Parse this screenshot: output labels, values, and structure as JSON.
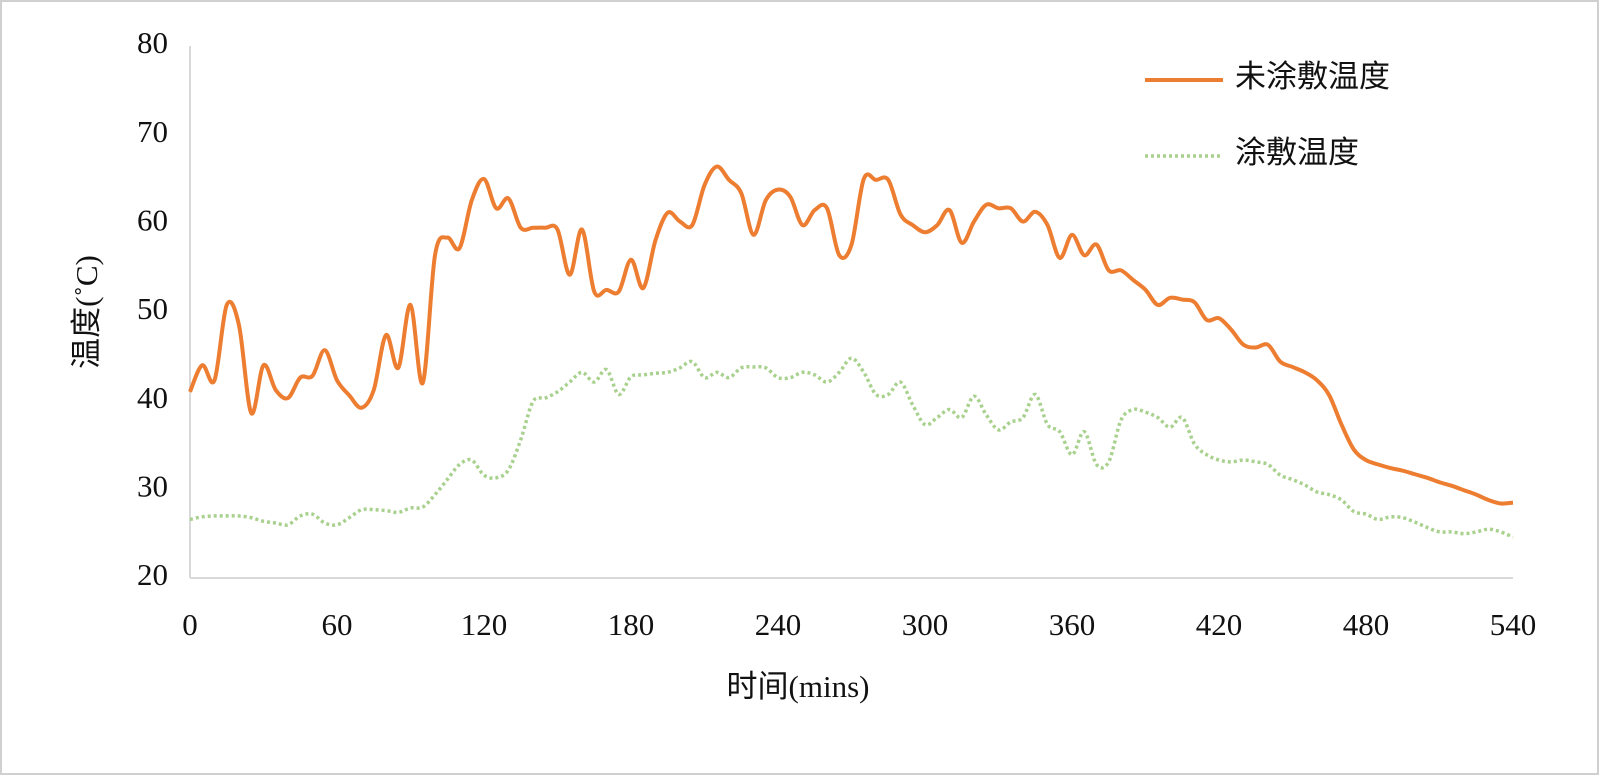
{
  "chart_data": {
    "type": "line",
    "xlabel": "时间(mins)",
    "ylabel": "温度(˚C)",
    "x": [
      0,
      5,
      10,
      15,
      20,
      25,
      30,
      35,
      40,
      45,
      50,
      55,
      60,
      65,
      70,
      75,
      80,
      85,
      90,
      95,
      100,
      105,
      110,
      115,
      120,
      125,
      130,
      135,
      140,
      145,
      150,
      155,
      160,
      165,
      170,
      175,
      180,
      185,
      190,
      195,
      200,
      205,
      210,
      215,
      220,
      225,
      230,
      235,
      240,
      245,
      250,
      255,
      260,
      265,
      270,
      275,
      280,
      285,
      290,
      295,
      300,
      305,
      310,
      315,
      320,
      325,
      330,
      335,
      340,
      345,
      350,
      355,
      360,
      365,
      370,
      375,
      380,
      385,
      390,
      395,
      400,
      405,
      410,
      415,
      420,
      425,
      430,
      435,
      440,
      445,
      450,
      455,
      460,
      465,
      470,
      475,
      480,
      485,
      490,
      495,
      500,
      505,
      510,
      515,
      520,
      525,
      530,
      535,
      540
    ],
    "series": [
      {
        "name": "未涂敷温度",
        "color": "#ed7d31",
        "style": "solid",
        "values": [
          41,
          44,
          42.3,
          50.8,
          48.5,
          38.6,
          44,
          41.2,
          40.3,
          42.6,
          42.8,
          45.7,
          42.3,
          40.6,
          39.2,
          41.2,
          47.4,
          43.7,
          50.8,
          42,
          56.4,
          58.4,
          57.2,
          62.6,
          65,
          61.7,
          62.8,
          59.5,
          59.5,
          59.5,
          59.3,
          54.2,
          59.3,
          52.3,
          52.5,
          52.3,
          55.9,
          52.7,
          58.1,
          61.2,
          60.2,
          59.8,
          64.3,
          66.4,
          64.9,
          63.4,
          58.7,
          62.6,
          63.8,
          63,
          59.8,
          61.5,
          61.7,
          56.4,
          57.6,
          65,
          64.9,
          64.9,
          61,
          59.8,
          59,
          59.8,
          61.5,
          57.8,
          60.2,
          62.1,
          61.7,
          61.7,
          60.2,
          61.3,
          59.8,
          56.1,
          58.7,
          56.4,
          57.6,
          54.7,
          54.7,
          53.6,
          52.5,
          50.8,
          51.6,
          51.4,
          51.1,
          49.1,
          49.3,
          48,
          46.3,
          46,
          46.3,
          44.4,
          43.8,
          43.2,
          42.3,
          40.6,
          37.3,
          34.5,
          33.3,
          32.8,
          32.4,
          32.1,
          31.7,
          31.3,
          30.8,
          30.4,
          29.9,
          29.4,
          28.8,
          28.4,
          28.5
        ]
      },
      {
        "name": "涂敷温度",
        "color": "#a9d18e",
        "style": "dotted",
        "values": [
          26.6,
          26.9,
          27,
          27,
          27,
          26.8,
          26.4,
          26.2,
          26,
          27,
          27.2,
          26.2,
          26,
          26.8,
          27.7,
          27.7,
          27.6,
          27.4,
          27.9,
          28,
          29.4,
          31.1,
          32.8,
          33.3,
          31.6,
          31.3,
          32.2,
          35.6,
          39.9,
          40.3,
          41,
          42.1,
          43.2,
          42.1,
          43.5,
          40.7,
          42.7,
          42.9,
          43.1,
          43.2,
          43.7,
          44.4,
          42.6,
          43.2,
          42.6,
          43.7,
          43.8,
          43.7,
          42.6,
          42.6,
          43.2,
          42.9,
          42.1,
          43.2,
          44.8,
          43.2,
          40.7,
          40.7,
          42.1,
          39.5,
          37.3,
          38.1,
          39,
          38.1,
          40.5,
          38.4,
          36.7,
          37.6,
          38.1,
          40.7,
          37.3,
          36.5,
          33.9,
          36.5,
          32.8,
          33.1,
          37.8,
          39,
          38.7,
          38.1,
          37,
          38.1,
          35.1,
          33.9,
          33.3,
          33.1,
          33.3,
          33.1,
          32.8,
          31.6,
          31.1,
          30.5,
          29.7,
          29.4,
          28.8,
          27.5,
          27.2,
          26.6,
          26.9,
          26.8,
          26.3,
          25.7,
          25.2,
          25.2,
          25,
          25.2,
          25.5,
          25.2,
          24.6
        ]
      }
    ],
    "xlim": [
      0,
      540
    ],
    "xticks": [
      0,
      60,
      120,
      180,
      240,
      300,
      360,
      420,
      480,
      540
    ],
    "ylim": [
      20,
      80
    ],
    "yticks": [
      20,
      30,
      40,
      50,
      60,
      70,
      80
    ],
    "grid": false,
    "legend": "upper right"
  }
}
